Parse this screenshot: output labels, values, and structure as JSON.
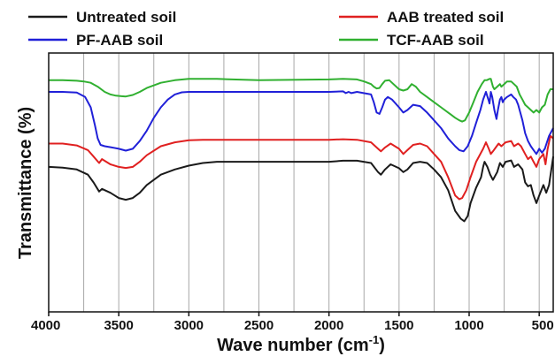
{
  "chart_data": {
    "type": "line",
    "xlabel": "Wave number (cm",
    "xlabel_sup": "-1",
    "xlabel_close": ")",
    "ylabel": "Transmittance (%)",
    "x_reversed": true,
    "xlim": [
      4000,
      400
    ],
    "x_ticks": [
      4000,
      3500,
      3000,
      2500,
      2000,
      1500,
      1000,
      500
    ],
    "x_tick_labels": [
      "4000",
      "3500",
      "3000",
      "2500",
      "2000",
      "1500",
      "1000",
      "500"
    ],
    "y_ticks_shown": false,
    "grid": "vertical",
    "legend_position": "top",
    "series": [
      {
        "name": "Untreated soil",
        "color": "#1a1a1a",
        "points": [
          [
            4000,
            56
          ],
          [
            3900,
            55.7
          ],
          [
            3800,
            55
          ],
          [
            3720,
            53
          ],
          [
            3680,
            50
          ],
          [
            3640,
            46.5
          ],
          [
            3620,
            47.5
          ],
          [
            3560,
            46
          ],
          [
            3500,
            44
          ],
          [
            3450,
            43.3
          ],
          [
            3400,
            44
          ],
          [
            3350,
            46
          ],
          [
            3300,
            49
          ],
          [
            3200,
            53
          ],
          [
            3100,
            55
          ],
          [
            3000,
            56.5
          ],
          [
            2900,
            57.5
          ],
          [
            2800,
            58
          ],
          [
            2500,
            58
          ],
          [
            2000,
            58
          ],
          [
            1900,
            58.4
          ],
          [
            1800,
            58.4
          ],
          [
            1700,
            57.5
          ],
          [
            1650,
            54
          ],
          [
            1630,
            53
          ],
          [
            1600,
            55
          ],
          [
            1560,
            57
          ],
          [
            1500,
            55.5
          ],
          [
            1470,
            54
          ],
          [
            1440,
            55
          ],
          [
            1400,
            57.5
          ],
          [
            1350,
            58
          ],
          [
            1300,
            57.5
          ],
          [
            1250,
            55
          ],
          [
            1200,
            52
          ],
          [
            1150,
            47
          ],
          [
            1100,
            39
          ],
          [
            1060,
            36
          ],
          [
            1035,
            35
          ],
          [
            1010,
            37
          ],
          [
            990,
            42
          ],
          [
            950,
            48
          ],
          [
            915,
            52
          ],
          [
            900,
            56
          ],
          [
            890,
            58
          ],
          [
            870,
            56
          ],
          [
            850,
            53
          ],
          [
            830,
            51
          ],
          [
            800,
            54
          ],
          [
            780,
            57.5
          ],
          [
            760,
            56
          ],
          [
            740,
            58
          ],
          [
            700,
            58.5
          ],
          [
            680,
            56
          ],
          [
            650,
            57
          ],
          [
            620,
            55
          ],
          [
            600,
            50
          ],
          [
            580,
            48.5
          ],
          [
            560,
            49
          ],
          [
            540,
            45
          ],
          [
            520,
            42
          ],
          [
            500,
            45
          ],
          [
            470,
            49
          ],
          [
            450,
            46
          ],
          [
            430,
            49
          ],
          [
            400,
            60
          ]
        ]
      },
      {
        "name": "AAB treated soil",
        "color": "#e02020",
        "points": [
          [
            4000,
            65
          ],
          [
            3900,
            65
          ],
          [
            3800,
            64.3
          ],
          [
            3720,
            62.5
          ],
          [
            3680,
            60
          ],
          [
            3640,
            57.5
          ],
          [
            3620,
            59
          ],
          [
            3560,
            57
          ],
          [
            3500,
            56
          ],
          [
            3450,
            55.6
          ],
          [
            3400,
            56
          ],
          [
            3350,
            58
          ],
          [
            3300,
            60.5
          ],
          [
            3200,
            64
          ],
          [
            3100,
            65.5
          ],
          [
            3000,
            66.3
          ],
          [
            2900,
            66.5
          ],
          [
            2500,
            66.5
          ],
          [
            2000,
            66.5
          ],
          [
            1900,
            66.7
          ],
          [
            1800,
            66.5
          ],
          [
            1700,
            65.5
          ],
          [
            1650,
            63
          ],
          [
            1630,
            62
          ],
          [
            1600,
            63.5
          ],
          [
            1560,
            65
          ],
          [
            1500,
            63
          ],
          [
            1470,
            61
          ],
          [
            1440,
            62.5
          ],
          [
            1400,
            64.5
          ],
          [
            1350,
            65
          ],
          [
            1300,
            64
          ],
          [
            1250,
            61
          ],
          [
            1200,
            58
          ],
          [
            1150,
            52
          ],
          [
            1100,
            45
          ],
          [
            1070,
            43.5
          ],
          [
            1050,
            44
          ],
          [
            1020,
            47
          ],
          [
            990,
            52
          ],
          [
            950,
            58
          ],
          [
            900,
            63
          ],
          [
            880,
            65.5
          ],
          [
            860,
            63
          ],
          [
            845,
            61
          ],
          [
            830,
            62
          ],
          [
            810,
            63.5
          ],
          [
            790,
            65
          ],
          [
            770,
            64
          ],
          [
            740,
            65.5
          ],
          [
            700,
            66
          ],
          [
            680,
            64
          ],
          [
            650,
            65
          ],
          [
            630,
            64
          ],
          [
            600,
            61
          ],
          [
            580,
            59
          ],
          [
            560,
            60
          ],
          [
            540,
            58
          ],
          [
            520,
            56
          ],
          [
            500,
            59
          ],
          [
            470,
            61
          ],
          [
            455,
            57
          ],
          [
            440,
            63
          ],
          [
            420,
            68
          ],
          [
            400,
            67
          ]
        ]
      },
      {
        "name": "PF-AAB soil",
        "color": "#2020d8",
        "points": [
          [
            4000,
            85
          ],
          [
            3900,
            85
          ],
          [
            3800,
            84.7
          ],
          [
            3740,
            83
          ],
          [
            3700,
            79
          ],
          [
            3670,
            72
          ],
          [
            3650,
            67
          ],
          [
            3630,
            64.5
          ],
          [
            3600,
            64
          ],
          [
            3550,
            63.5
          ],
          [
            3500,
            63
          ],
          [
            3450,
            62.3
          ],
          [
            3400,
            63
          ],
          [
            3350,
            66
          ],
          [
            3300,
            70
          ],
          [
            3250,
            75
          ],
          [
            3200,
            79
          ],
          [
            3150,
            82
          ],
          [
            3100,
            84
          ],
          [
            3050,
            84.8
          ],
          [
            3000,
            85
          ],
          [
            2500,
            85
          ],
          [
            2000,
            85
          ],
          [
            1900,
            85.2
          ],
          [
            1880,
            84.5
          ],
          [
            1860,
            85
          ],
          [
            1840,
            84.5
          ],
          [
            1800,
            85
          ],
          [
            1700,
            84
          ],
          [
            1680,
            81
          ],
          [
            1660,
            77
          ],
          [
            1640,
            76.5
          ],
          [
            1620,
            79
          ],
          [
            1600,
            82
          ],
          [
            1580,
            83
          ],
          [
            1550,
            82
          ],
          [
            1500,
            79
          ],
          [
            1470,
            77
          ],
          [
            1440,
            78
          ],
          [
            1400,
            80
          ],
          [
            1350,
            79.5
          ],
          [
            1300,
            77
          ],
          [
            1250,
            74
          ],
          [
            1200,
            71
          ],
          [
            1150,
            67
          ],
          [
            1100,
            64
          ],
          [
            1070,
            62.5
          ],
          [
            1040,
            62
          ],
          [
            1010,
            64
          ],
          [
            980,
            68
          ],
          [
            950,
            73
          ],
          [
            920,
            78
          ],
          [
            900,
            82
          ],
          [
            880,
            85
          ],
          [
            860,
            81.5
          ],
          [
            855,
            80.5
          ],
          [
            845,
            85
          ],
          [
            835,
            83
          ],
          [
            820,
            78
          ],
          [
            805,
            74.5
          ],
          [
            795,
            78
          ],
          [
            780,
            82
          ],
          [
            770,
            83
          ],
          [
            760,
            81
          ],
          [
            750,
            82
          ],
          [
            730,
            83
          ],
          [
            700,
            84
          ],
          [
            685,
            83
          ],
          [
            665,
            82
          ],
          [
            650,
            80
          ],
          [
            640,
            78
          ],
          [
            620,
            74
          ],
          [
            600,
            69
          ],
          [
            580,
            66
          ],
          [
            560,
            64
          ],
          [
            540,
            62.5
          ],
          [
            520,
            61
          ],
          [
            500,
            63
          ],
          [
            480,
            61.5
          ],
          [
            460,
            63
          ],
          [
            430,
            68
          ],
          [
            400,
            71
          ]
        ]
      },
      {
        "name": "TCF-AAB soil",
        "color": "#30b030",
        "points": [
          [
            4000,
            89.5
          ],
          [
            3900,
            89.5
          ],
          [
            3800,
            89.3
          ],
          [
            3750,
            89
          ],
          [
            3700,
            88.5
          ],
          [
            3650,
            87
          ],
          [
            3600,
            85
          ],
          [
            3560,
            84
          ],
          [
            3520,
            83.5
          ],
          [
            3480,
            83.3
          ],
          [
            3450,
            83.2
          ],
          [
            3400,
            83.8
          ],
          [
            3350,
            85
          ],
          [
            3300,
            86.5
          ],
          [
            3200,
            88.5
          ],
          [
            3100,
            89.5
          ],
          [
            3000,
            90
          ],
          [
            2800,
            90
          ],
          [
            2500,
            89.5
          ],
          [
            2000,
            89.8
          ],
          [
            1900,
            90
          ],
          [
            1800,
            89.8
          ],
          [
            1750,
            89
          ],
          [
            1700,
            88
          ],
          [
            1680,
            87
          ],
          [
            1660,
            86.3
          ],
          [
            1640,
            86.5
          ],
          [
            1620,
            88
          ],
          [
            1600,
            89.3
          ],
          [
            1570,
            89.5
          ],
          [
            1540,
            88
          ],
          [
            1500,
            86
          ],
          [
            1470,
            85.5
          ],
          [
            1440,
            86
          ],
          [
            1410,
            88
          ],
          [
            1380,
            87
          ],
          [
            1350,
            85
          ],
          [
            1300,
            83
          ],
          [
            1250,
            81
          ],
          [
            1200,
            79
          ],
          [
            1150,
            77
          ],
          [
            1100,
            75
          ],
          [
            1070,
            74
          ],
          [
            1050,
            73.5
          ],
          [
            1030,
            74
          ],
          [
            1000,
            77
          ],
          [
            970,
            81
          ],
          [
            940,
            85
          ],
          [
            910,
            88
          ],
          [
            890,
            89.5
          ],
          [
            875,
            89.5
          ],
          [
            855,
            90
          ],
          [
            845,
            90
          ],
          [
            830,
            87
          ],
          [
            820,
            86
          ],
          [
            800,
            87
          ],
          [
            780,
            88
          ],
          [
            770,
            87
          ],
          [
            750,
            88
          ],
          [
            730,
            89
          ],
          [
            700,
            89
          ],
          [
            680,
            88
          ],
          [
            660,
            87
          ],
          [
            640,
            84
          ],
          [
            620,
            82
          ],
          [
            600,
            80
          ],
          [
            580,
            79
          ],
          [
            560,
            78
          ],
          [
            540,
            77
          ],
          [
            520,
            78
          ],
          [
            500,
            77
          ],
          [
            480,
            79
          ],
          [
            460,
            80
          ],
          [
            440,
            84
          ],
          [
            420,
            86
          ],
          [
            400,
            86
          ]
        ]
      }
    ]
  }
}
